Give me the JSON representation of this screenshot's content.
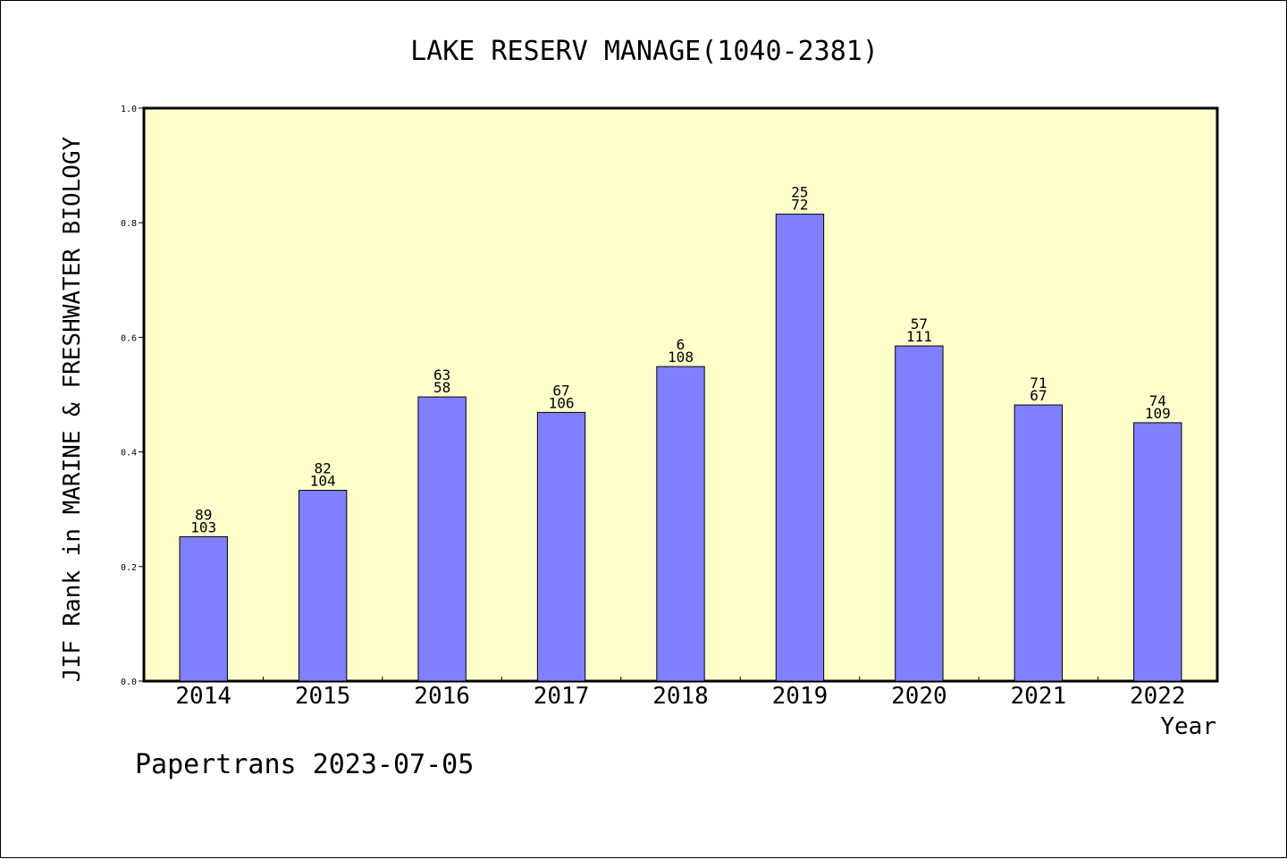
{
  "chart_data": {
    "type": "bar",
    "title": "LAKE RESERV MANAGE(1040-2381)",
    "xlabel": "Year",
    "ylabel": "JIF Rank in MARINE & FRESHWATER BIOLOGY",
    "footer": "Papertrans 2023-07-05",
    "ylim": [
      0,
      1.0
    ],
    "yticks": [
      "0.0",
      "0.2",
      "0.4",
      "0.6",
      "0.8",
      "1.0"
    ],
    "categories": [
      "2014",
      "2015",
      "2016",
      "2017",
      "2018",
      "2019",
      "2020",
      "2021",
      "2022"
    ],
    "values": [
      0.252,
      0.333,
      0.496,
      0.469,
      0.549,
      0.815,
      0.585,
      0.482,
      0.451
    ],
    "rank_labels": [
      "89",
      "82",
      "63",
      "67",
      "6",
      "25",
      "57",
      "71",
      "74"
    ],
    "total_labels": [
      "103",
      "104",
      "58",
      "106",
      "108",
      "72",
      "111",
      "67",
      "109"
    ],
    "grid": false,
    "colors": {
      "bar": "#8080ff",
      "plot_bg": "#ffffcc",
      "axis": "#000000"
    }
  }
}
